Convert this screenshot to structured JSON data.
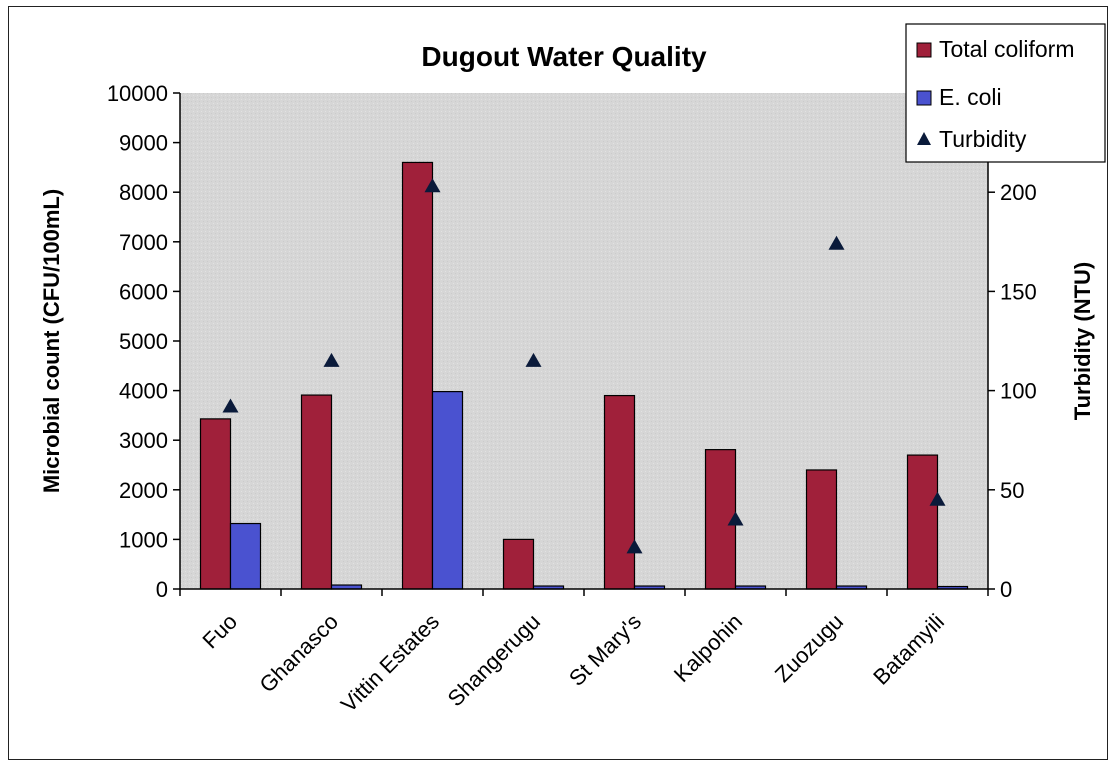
{
  "chart_data": {
    "type": "bar",
    "title": "Dugout Water Quality",
    "categories": [
      "Fuo",
      "Ghanasco",
      "Vittin Estates",
      "Shangerugu",
      "St Mary's",
      "Kalpohin",
      "Zuozugu",
      "Batamyili"
    ],
    "series": [
      {
        "name": "Total coliform",
        "type": "bar",
        "axis": "left",
        "color": "#a0203a",
        "values": [
          3430,
          3910,
          8600,
          1000,
          3900,
          2810,
          2400,
          2700
        ]
      },
      {
        "name": "E. coli",
        "type": "bar",
        "axis": "left",
        "color": "#4a52d0",
        "values": [
          1320,
          80,
          3980,
          60,
          60,
          60,
          60,
          50
        ]
      },
      {
        "name": "Turbidity",
        "type": "scatter",
        "axis": "right",
        "marker": "triangle",
        "color": "#0a1a3a",
        "values": [
          92,
          115,
          203,
          115,
          21,
          35,
          174,
          45
        ]
      }
    ],
    "ylabel": "Microbial count (CFU/100mL)",
    "y2label": "Turbidity (NTU)",
    "ylim": [
      0,
      10000
    ],
    "yticks": [
      "0",
      "1000",
      "2000",
      "3000",
      "4000",
      "5000",
      "6000",
      "7000",
      "8000",
      "9000",
      "10000"
    ],
    "y2lim": [
      0,
      250
    ],
    "y2ticks": [
      "0",
      "50",
      "100",
      "150",
      "200"
    ],
    "grid": false,
    "plot_background": "#d7d7d7",
    "legend_position": "top-right"
  }
}
